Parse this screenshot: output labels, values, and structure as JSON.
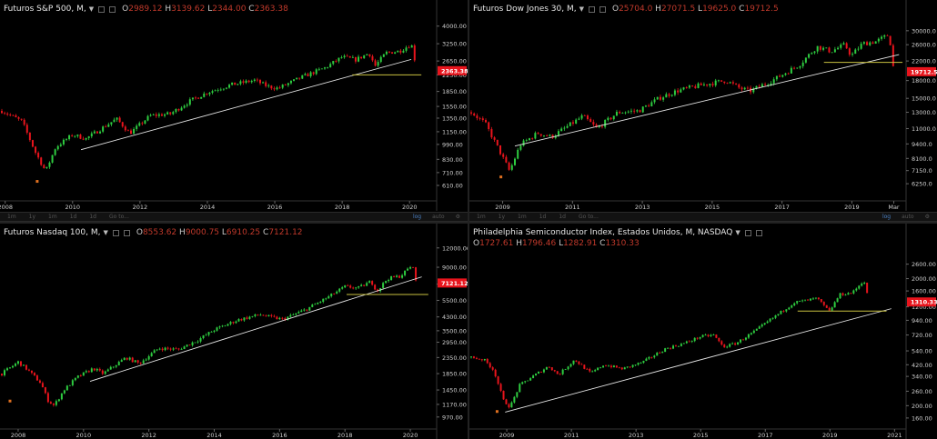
{
  "colors": {
    "up": "#2ecc40",
    "down": "#e8141c",
    "trend": "#e6e6e6",
    "support": "#c8c040",
    "axis": "#cfcfcf",
    "badge": "#e8141c"
  },
  "toolbar": {
    "items": [
      "1m",
      "1y",
      "1m",
      "1d",
      "1d",
      "Go to..."
    ],
    "log": "log",
    "auto": "auto"
  },
  "chart_data": [
    {
      "type": "candlestick",
      "title": "Futuros S&P 500, M,",
      "ohlc": {
        "o": "2989.12",
        "h": "3139.62",
        "l": "2344.00",
        "c": "2363.38"
      },
      "last_price": "2363.38",
      "y_ticks": [
        "4000.00",
        "3250.00",
        "2650.00",
        "2250.00",
        "1850.00",
        "1550.00",
        "1350.00",
        "1150.00",
        "990.00",
        "830.00",
        "710.00",
        "610.00"
      ],
      "x_ticks": [
        "2008",
        "2010",
        "2012",
        "2014",
        "2016",
        "2018",
        "2020"
      ],
      "scale": "log",
      "ylim": [
        560,
        4300
      ],
      "xlim": [
        2007.9,
        2020.75
      ],
      "path": [
        [
          2007.9,
          1470
        ],
        [
          2008.5,
          1300
        ],
        [
          2008.9,
          900
        ],
        [
          2009.2,
          720
        ],
        [
          2009.5,
          960
        ],
        [
          2010.0,
          1110
        ],
        [
          2010.4,
          1060
        ],
        [
          2011.3,
          1340
        ],
        [
          2011.7,
          1130
        ],
        [
          2012.3,
          1390
        ],
        [
          2012.9,
          1420
        ],
        [
          2013.5,
          1660
        ],
        [
          2014.0,
          1830
        ],
        [
          2014.7,
          2000
        ],
        [
          2015.4,
          2110
        ],
        [
          2015.8,
          1960
        ],
        [
          2016.1,
          1920
        ],
        [
          2016.8,
          2190
        ],
        [
          2017.5,
          2450
        ],
        [
          2018.0,
          2780
        ],
        [
          2018.4,
          2690
        ],
        [
          2018.8,
          2910
        ],
        [
          2018.98,
          2500
        ],
        [
          2019.3,
          2920
        ],
        [
          2019.7,
          2980
        ],
        [
          2020.05,
          3230
        ],
        [
          2020.12,
          2950
        ],
        [
          2020.2,
          2363
        ]
      ],
      "trend": [
        [
          2010.25,
          930
        ],
        [
          2020.05,
          2700
        ]
      ],
      "support": {
        "y": 2250,
        "x": [
          2018.3,
          2020.35
        ]
      },
      "marker": {
        "x": 2008.95,
        "y": 640
      }
    },
    {
      "type": "candlestick",
      "title": "Futuros Dow Jones 30, M,",
      "ohlc": {
        "o": "25704.0",
        "h": "27071.5",
        "l": "19625.0",
        "c": "19712.5"
      },
      "last_price": "19712.5",
      "y_ticks": [
        "30000.0",
        "26000.0",
        "22000.0",
        "18000.0",
        "15000.0",
        "13000.0",
        "11000.0",
        "9400.0",
        "8100.0",
        "7150.0",
        "6250.0"
      ],
      "x_ticks": [
        "2009",
        "2011",
        "2013",
        "2015",
        "2017",
        "2019",
        "Mar"
      ],
      "scale": "log",
      "ylim": [
        5700,
        33500
      ],
      "xlim": [
        2008.1,
        2020.5
      ],
      "path": [
        [
          2008.1,
          13000
        ],
        [
          2008.5,
          11600
        ],
        [
          2008.9,
          8800
        ],
        [
          2009.2,
          7100
        ],
        [
          2009.5,
          9300
        ],
        [
          2010.0,
          10500
        ],
        [
          2010.4,
          10100
        ],
        [
          2011.3,
          12500
        ],
        [
          2011.7,
          11000
        ],
        [
          2012.3,
          13000
        ],
        [
          2012.9,
          13200
        ],
        [
          2013.5,
          15100
        ],
        [
          2014.0,
          16200
        ],
        [
          2014.7,
          17200
        ],
        [
          2015.4,
          18000
        ],
        [
          2015.8,
          16600
        ],
        [
          2016.1,
          16200
        ],
        [
          2016.8,
          18300
        ],
        [
          2017.5,
          21200
        ],
        [
          2018.0,
          25500
        ],
        [
          2018.4,
          24300
        ],
        [
          2018.8,
          26000
        ],
        [
          2018.98,
          23200
        ],
        [
          2019.3,
          26300
        ],
        [
          2019.7,
          26900
        ],
        [
          2020.05,
          28800
        ],
        [
          2020.12,
          25500
        ],
        [
          2020.2,
          19700
        ]
      ],
      "trend": [
        [
          2009.35,
          9200
        ],
        [
          2020.35,
          23500
        ]
      ],
      "support": {
        "y": 21700,
        "x": [
          2018.2,
          2020.45
        ]
      },
      "marker": {
        "x": 2008.95,
        "y": 6700
      }
    },
    {
      "type": "candlestick",
      "title": "Futuros Nasdaq 100, M,",
      "ohlc": {
        "o": "8553.62",
        "h": "9000.75",
        "l": "6910.25",
        "c": "7121.12"
      },
      "last_price": "7121.12",
      "y_ticks": [
        "12000.00",
        "9000.00",
        "7000.00",
        "5500.00",
        "4300.00",
        "3500.00",
        "2950.00",
        "2350.00",
        "1850.00",
        "1450.00",
        "1170.00",
        "970.00"
      ],
      "x_ticks": [
        "2008",
        "2010",
        "2012",
        "2014",
        "2016",
        "2018",
        "2020"
      ],
      "scale": "log",
      "ylim": [
        880,
        12800
      ],
      "xlim": [
        2007.5,
        2020.75
      ],
      "path": [
        [
          2007.5,
          1850
        ],
        [
          2007.8,
          2050
        ],
        [
          2008.0,
          2200
        ],
        [
          2008.3,
          1950
        ],
        [
          2008.7,
          1600
        ],
        [
          2008.9,
          1250
        ],
        [
          2009.1,
          1150
        ],
        [
          2009.4,
          1450
        ],
        [
          2009.8,
          1750
        ],
        [
          2010.3,
          2000
        ],
        [
          2010.6,
          1850
        ],
        [
          2011.3,
          2350
        ],
        [
          2011.7,
          2150
        ],
        [
          2012.3,
          2700
        ],
        [
          2012.9,
          2650
        ],
        [
          2013.5,
          3050
        ],
        [
          2014.0,
          3550
        ],
        [
          2014.7,
          4100
        ],
        [
          2015.4,
          4450
        ],
        [
          2015.8,
          4250
        ],
        [
          2016.1,
          4150
        ],
        [
          2016.8,
          4800
        ],
        [
          2017.5,
          5800
        ],
        [
          2018.0,
          6750
        ],
        [
          2018.4,
          6600
        ],
        [
          2018.8,
          7300
        ],
        [
          2018.98,
          6300
        ],
        [
          2019.3,
          7600
        ],
        [
          2019.7,
          7900
        ],
        [
          2020.05,
          9300
        ],
        [
          2020.12,
          8300
        ],
        [
          2020.2,
          7121
        ]
      ],
      "trend": [
        [
          2010.2,
          1650
        ],
        [
          2020.35,
          7800
        ]
      ],
      "support": {
        "y": 6000,
        "x": [
          2018.05,
          2020.55
        ]
      },
      "marker": {
        "x": 2007.75,
        "y": 1230
      }
    },
    {
      "type": "candlestick",
      "title": "Philadelphia Semiconductor Index, Estados Unidos, M, NASDAQ",
      "ohlc": {
        "o": "1727.61",
        "h": "1796.46",
        "l": "1282.91",
        "c": "1310.33"
      },
      "last_price": "1310.33",
      "y_ticks": [
        "2600.00",
        "2000.00",
        "1600.00",
        "1200.00",
        "940.00",
        "720.00",
        "540.00",
        "420.00",
        "340.00",
        "260.00",
        "200.00",
        "160.00"
      ],
      "x_ticks": [
        "2009",
        "2011",
        "2013",
        "2015",
        "2017",
        "2019",
        "2021"
      ],
      "scale": "log",
      "ylim": [
        140,
        2900
      ],
      "xlim": [
        2007.9,
        2021.3
      ],
      "path": [
        [
          2007.9,
          480
        ],
        [
          2008.3,
          460
        ],
        [
          2008.6,
          380
        ],
        [
          2008.9,
          220
        ],
        [
          2009.1,
          195
        ],
        [
          2009.4,
          290
        ],
        [
          2009.8,
          340
        ],
        [
          2010.3,
          410
        ],
        [
          2010.6,
          350
        ],
        [
          2011.1,
          460
        ],
        [
          2011.6,
          360
        ],
        [
          2012.0,
          420
        ],
        [
          2012.6,
          390
        ],
        [
          2013.2,
          440
        ],
        [
          2013.9,
          560
        ],
        [
          2014.5,
          620
        ],
        [
          2015.0,
          700
        ],
        [
          2015.4,
          720
        ],
        [
          2015.7,
          580
        ],
        [
          2016.1,
          620
        ],
        [
          2016.7,
          780
        ],
        [
          2017.3,
          1010
        ],
        [
          2017.9,
          1300
        ],
        [
          2018.3,
          1350
        ],
        [
          2018.6,
          1400
        ],
        [
          2018.98,
          1100
        ],
        [
          2019.3,
          1500
        ],
        [
          2019.7,
          1550
        ],
        [
          2020.05,
          1950
        ],
        [
          2020.12,
          1650
        ],
        [
          2020.2,
          1310
        ]
      ],
      "trend": [
        [
          2008.95,
          178
        ],
        [
          2020.9,
          1160
        ]
      ],
      "support": {
        "y": 1110,
        "x": [
          2018.0,
          2020.75
        ]
      },
      "marker": {
        "x": 2008.7,
        "y": 180
      }
    }
  ]
}
